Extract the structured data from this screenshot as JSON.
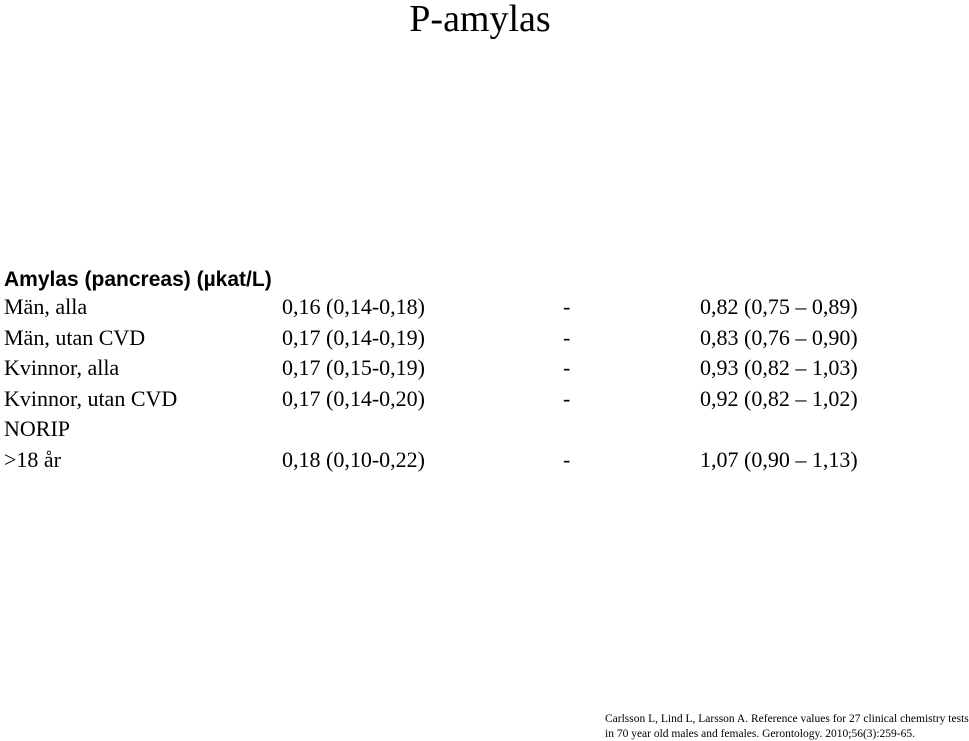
{
  "header": {
    "title": "P-amylas"
  },
  "table": {
    "heading": "Amylas (pancreas) (µkat/L)",
    "rows": [
      [
        "Män, alla",
        "0,16 (0,14-0,18)",
        "-",
        "0,82 (0,75 – 0,89)"
      ],
      [
        "Män, utan CVD",
        "0,17 (0,14-0,19)",
        "-",
        "0,83 (0,76 – 0,90)"
      ],
      [
        "Kvinnor, alla",
        "0,17 (0,15-0,19)",
        "-",
        "0,93 (0,82 – 1,03)"
      ],
      [
        "Kvinnor, utan CVD",
        "0,17 (0,14-0,20)",
        "-",
        "0,92 (0,82 – 1,02)"
      ],
      [
        "NORIP"
      ],
      [
        ">18 år",
        "0,18 (0,10-0,22)",
        "-",
        "1,07 (0,90 – 1,13)"
      ]
    ]
  },
  "reference": {
    "lines": [
      "Carlsson L, Lind L, Larsson A. Reference values for 27 clinical chemistry tests",
      "in 70 year old males and females. Gerontology. 2010;56(3):259-65."
    ]
  }
}
